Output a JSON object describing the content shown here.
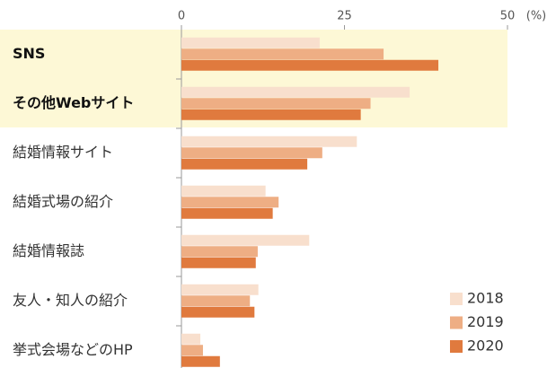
{
  "chart_data": {
    "type": "hbar",
    "unit": "(%)",
    "categories": [
      "SNS",
      "その他Webサイト",
      "結婚情報サイト",
      "結婚式場の紹介",
      "結婚情報誌",
      "友人・知人の紹介",
      "挙式会場などのHP"
    ],
    "series": [
      {
        "name": "2018",
        "color": "#f8dfcd",
        "values": [
          21.2,
          35,
          26.9,
          12.9,
          19.6,
          11.8,
          2.9
        ]
      },
      {
        "name": "2019",
        "color": "#eeae84",
        "values": [
          31,
          29,
          21.6,
          14.9,
          11.7,
          10.5,
          3.3
        ]
      },
      {
        "name": "2020",
        "color": "#e07a3e",
        "values": [
          39.4,
          27.5,
          19.3,
          14,
          11.4,
          11.2,
          5.9
        ]
      }
    ],
    "xlim": [
      0,
      50
    ],
    "xticks": [
      0,
      25,
      50
    ],
    "grid": false,
    "legend": "lower right"
  }
}
